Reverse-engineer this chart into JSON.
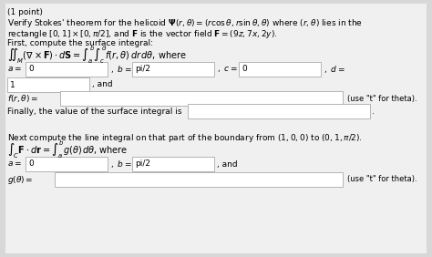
{
  "bg_color": "#d8d8d8",
  "box_color": "#ffffff",
  "box_border": "#aaaaaa",
  "fs": 6.5,
  "fs_math": 7.0
}
